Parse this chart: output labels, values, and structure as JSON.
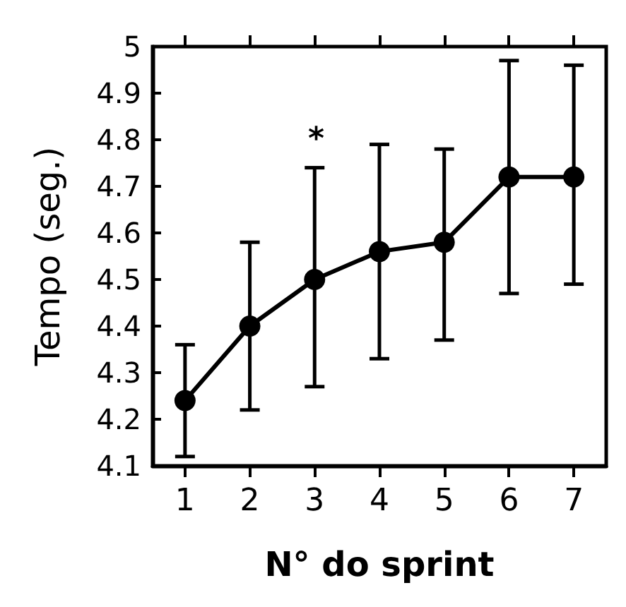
{
  "chart_data": {
    "type": "line",
    "xlabel": "N° do sprint",
    "ylabel": "Tempo (seg.)",
    "categories": [
      "1",
      "2",
      "3",
      "4",
      "5",
      "6",
      "7"
    ],
    "series": [
      {
        "color": "#000000",
        "values": [
          4.24,
          4.4,
          4.5,
          4.56,
          4.58,
          4.72,
          4.72
        ],
        "errors": [
          [
            4.12,
            4.36
          ],
          [
            4.22,
            4.58
          ],
          [
            4.27,
            4.74
          ],
          [
            4.33,
            4.79
          ],
          [
            4.37,
            4.78
          ],
          [
            4.47,
            4.97
          ],
          [
            4.49,
            4.96
          ]
        ]
      }
    ],
    "ylim": [
      4.1,
      5
    ],
    "yticks": [
      4.1,
      4.2,
      4.3,
      4.4,
      4.5,
      4.6,
      4.7,
      4.8,
      4.9,
      5
    ],
    "annotations": [
      "*"
    ],
    "marker": "circle",
    "line_style": "solid"
  }
}
